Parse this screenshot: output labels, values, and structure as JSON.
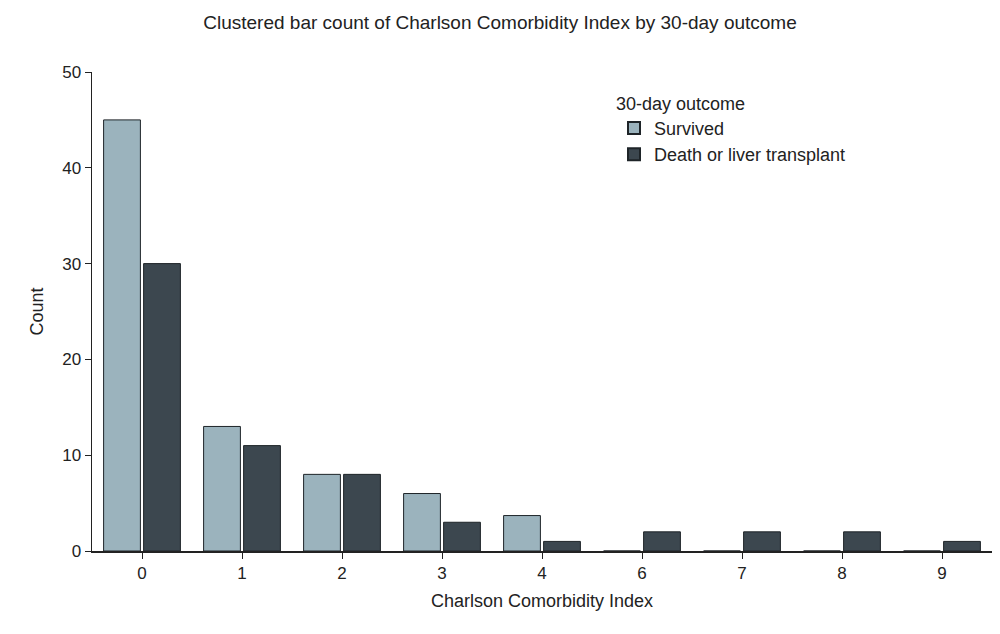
{
  "chart_data": {
    "type": "bar",
    "title": "Clustered bar count of Charlson Comorbidity Index by 30-day outcome",
    "x_label": "Charlson Comorbidity Index",
    "y_label": "Count",
    "categories": [
      "0",
      "1",
      "2",
      "3",
      "4",
      "6",
      "7",
      "8",
      "9"
    ],
    "series": [
      {
        "name": "Survived",
        "color": "#9bb3bd",
        "values": [
          45,
          13,
          8,
          6,
          3.7,
          0,
          0,
          0,
          0
        ]
      },
      {
        "name": "Death or liver transplant",
        "color": "#3c474f",
        "values": [
          30,
          11,
          8,
          3,
          1,
          2,
          2,
          2,
          1
        ]
      }
    ],
    "legend_title": "30-day outcome",
    "legend": "upper right",
    "ylim": [
      0,
      50
    ],
    "yticks": [
      0,
      10,
      20,
      30,
      40,
      50
    ],
    "grid": false
  }
}
